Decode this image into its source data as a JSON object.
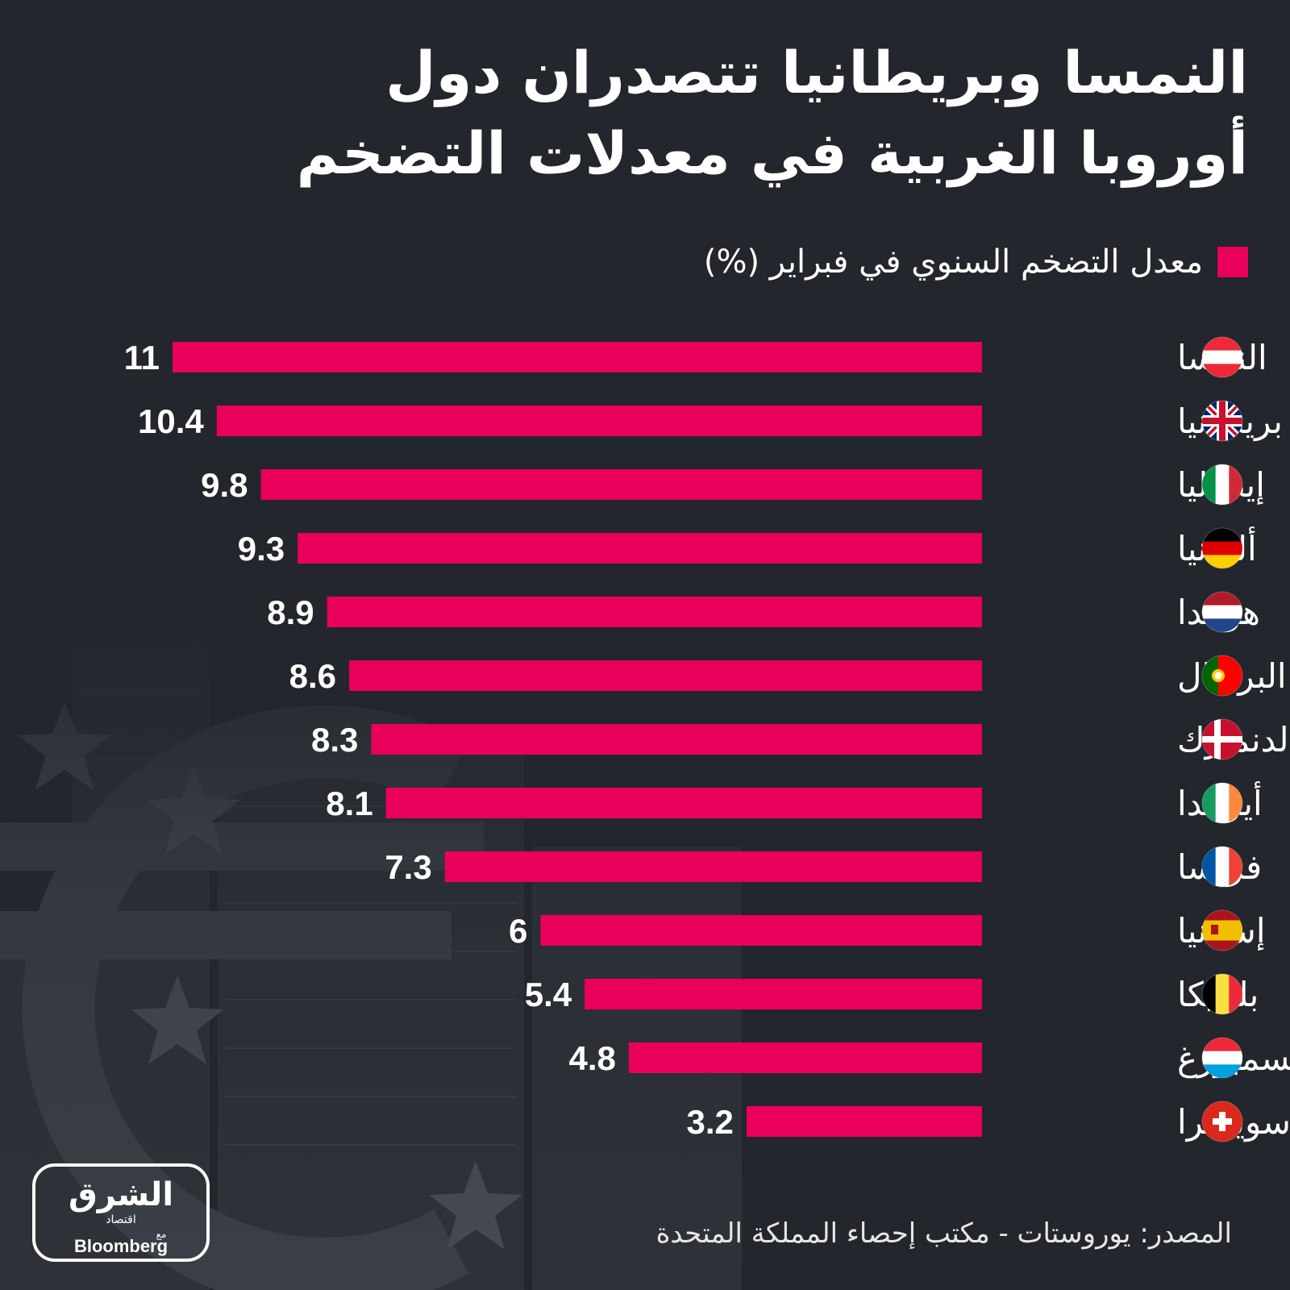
{
  "title": "النمسا وبريطانيا تتصدران دول أوروبا الغربية في معدلات التضخم",
  "legend": {
    "label": "معدل التضخم السنوي في فبراير (%)"
  },
  "colors": {
    "bar": "#e8005a",
    "background": "#23262c",
    "text": "#ffffff"
  },
  "chart_data": {
    "type": "bar",
    "orientation": "horizontal",
    "categories": [
      "النمسا",
      "بريطانيا",
      "إيطاليا",
      "ألمانيا",
      "هولندا",
      "البرتغال",
      "الدنمارك",
      "أيرلندا",
      "فرنسا",
      "إسبانيا",
      "بلجيكا",
      "لوكسمبورغ",
      "سويسرا"
    ],
    "values": [
      11,
      10.4,
      9.8,
      9.3,
      8.9,
      8.6,
      8.3,
      8.1,
      7.3,
      6,
      5.4,
      4.8,
      3.2
    ],
    "value_labels": [
      "11",
      "10.4",
      "9.8",
      "9.3",
      "8.9",
      "8.6",
      "8.3",
      "8.1",
      "7.3",
      "6",
      "5.4",
      "4.8",
      "3.2"
    ],
    "flags": [
      "austria-flag-icon",
      "uk-flag-icon",
      "italy-flag-icon",
      "germany-flag-icon",
      "netherlands-flag-icon",
      "portugal-flag-icon",
      "denmark-flag-icon",
      "ireland-flag-icon",
      "france-flag-icon",
      "spain-flag-icon",
      "belgium-flag-icon",
      "luxembourg-flag-icon",
      "switzerland-flag-icon"
    ],
    "xlim": [
      0,
      11
    ],
    "grid": false,
    "legend_position": "top-right",
    "title": "",
    "xlabel": "",
    "ylabel": ""
  },
  "source": "المصدر: يوروستات - مكتب إحصاء المملكة المتحدة",
  "logo": {
    "brand_ar": "الشرق",
    "sub_ar": "اقتصاد",
    "with_ar": "مع",
    "partner": "Bloomberg"
  }
}
